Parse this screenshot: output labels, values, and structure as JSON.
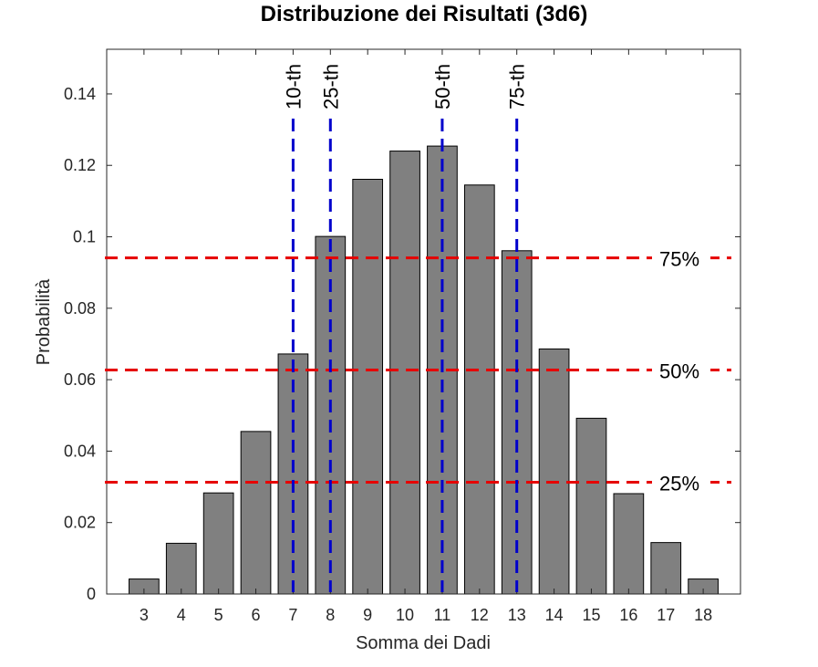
{
  "chart_data": {
    "type": "bar",
    "title": "Distribuzione dei Risultati (3d6)",
    "xlabel": "Somma dei Dadi",
    "ylabel": "Probabilità",
    "categories": [
      3,
      4,
      5,
      6,
      7,
      8,
      9,
      10,
      11,
      12,
      13,
      14,
      15,
      16,
      17,
      18
    ],
    "values": [
      0.0042,
      0.0142,
      0.0283,
      0.0455,
      0.0672,
      0.1001,
      0.1161,
      0.124,
      0.1254,
      0.1145,
      0.0961,
      0.0686,
      0.0492,
      0.0281,
      0.0144,
      0.0042
    ],
    "xlim": [
      2,
      19
    ],
    "ylim": [
      0,
      0.1525
    ],
    "yticks": [
      0,
      0.02,
      0.04,
      0.06,
      0.08,
      0.1,
      0.12,
      0.14
    ],
    "ytick_labels": [
      "0",
      "0.02",
      "0.04",
      "0.06",
      "0.08",
      "0.1",
      "0.12",
      "0.14"
    ],
    "bar_color": "#808080",
    "percentile_lines": [
      {
        "label": "10-th",
        "x": 7
      },
      {
        "label": "25-th",
        "x": 8
      },
      {
        "label": "50-th",
        "x": 11
      },
      {
        "label": "75-th",
        "x": 13
      }
    ],
    "percentile_color": "#0000cc",
    "quantile_lines": [
      {
        "label": "25%",
        "y": 0.0313
      },
      {
        "label": "50%",
        "y": 0.0627
      },
      {
        "label": "75%",
        "y": 0.0941
      }
    ],
    "quantile_color": "#e60000",
    "grid": false
  }
}
